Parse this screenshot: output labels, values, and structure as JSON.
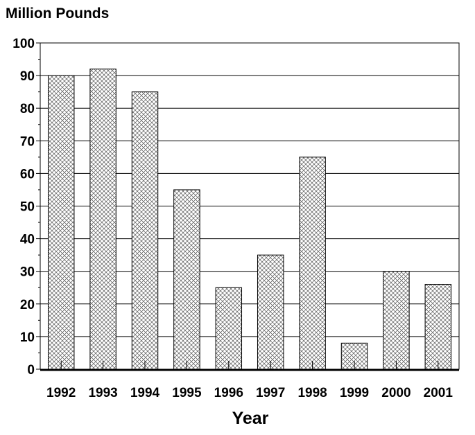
{
  "chart_data": {
    "type": "bar",
    "ylabel": "Million Pounds",
    "xlabel": "Year",
    "categories": [
      "1992",
      "1993",
      "1994",
      "1995",
      "1996",
      "1997",
      "1998",
      "1999",
      "2000",
      "2001"
    ],
    "values": [
      90,
      92,
      85,
      55,
      25,
      35,
      65,
      8,
      30,
      26
    ],
    "ylim": [
      0,
      100
    ],
    "yticks": [
      0,
      10,
      20,
      30,
      40,
      50,
      60,
      70,
      80,
      90,
      100
    ],
    "ytick_labels": [
      "0",
      "10",
      "20",
      "30",
      "40",
      "50",
      "60",
      "70",
      "80",
      "90",
      "100"
    ],
    "grid": true,
    "bar_fill": "crosshatch",
    "colors": {
      "bar_stroke": "#000000",
      "hatch": "#555555",
      "bar_background": "#ffffff",
      "grid": "#000000"
    }
  }
}
